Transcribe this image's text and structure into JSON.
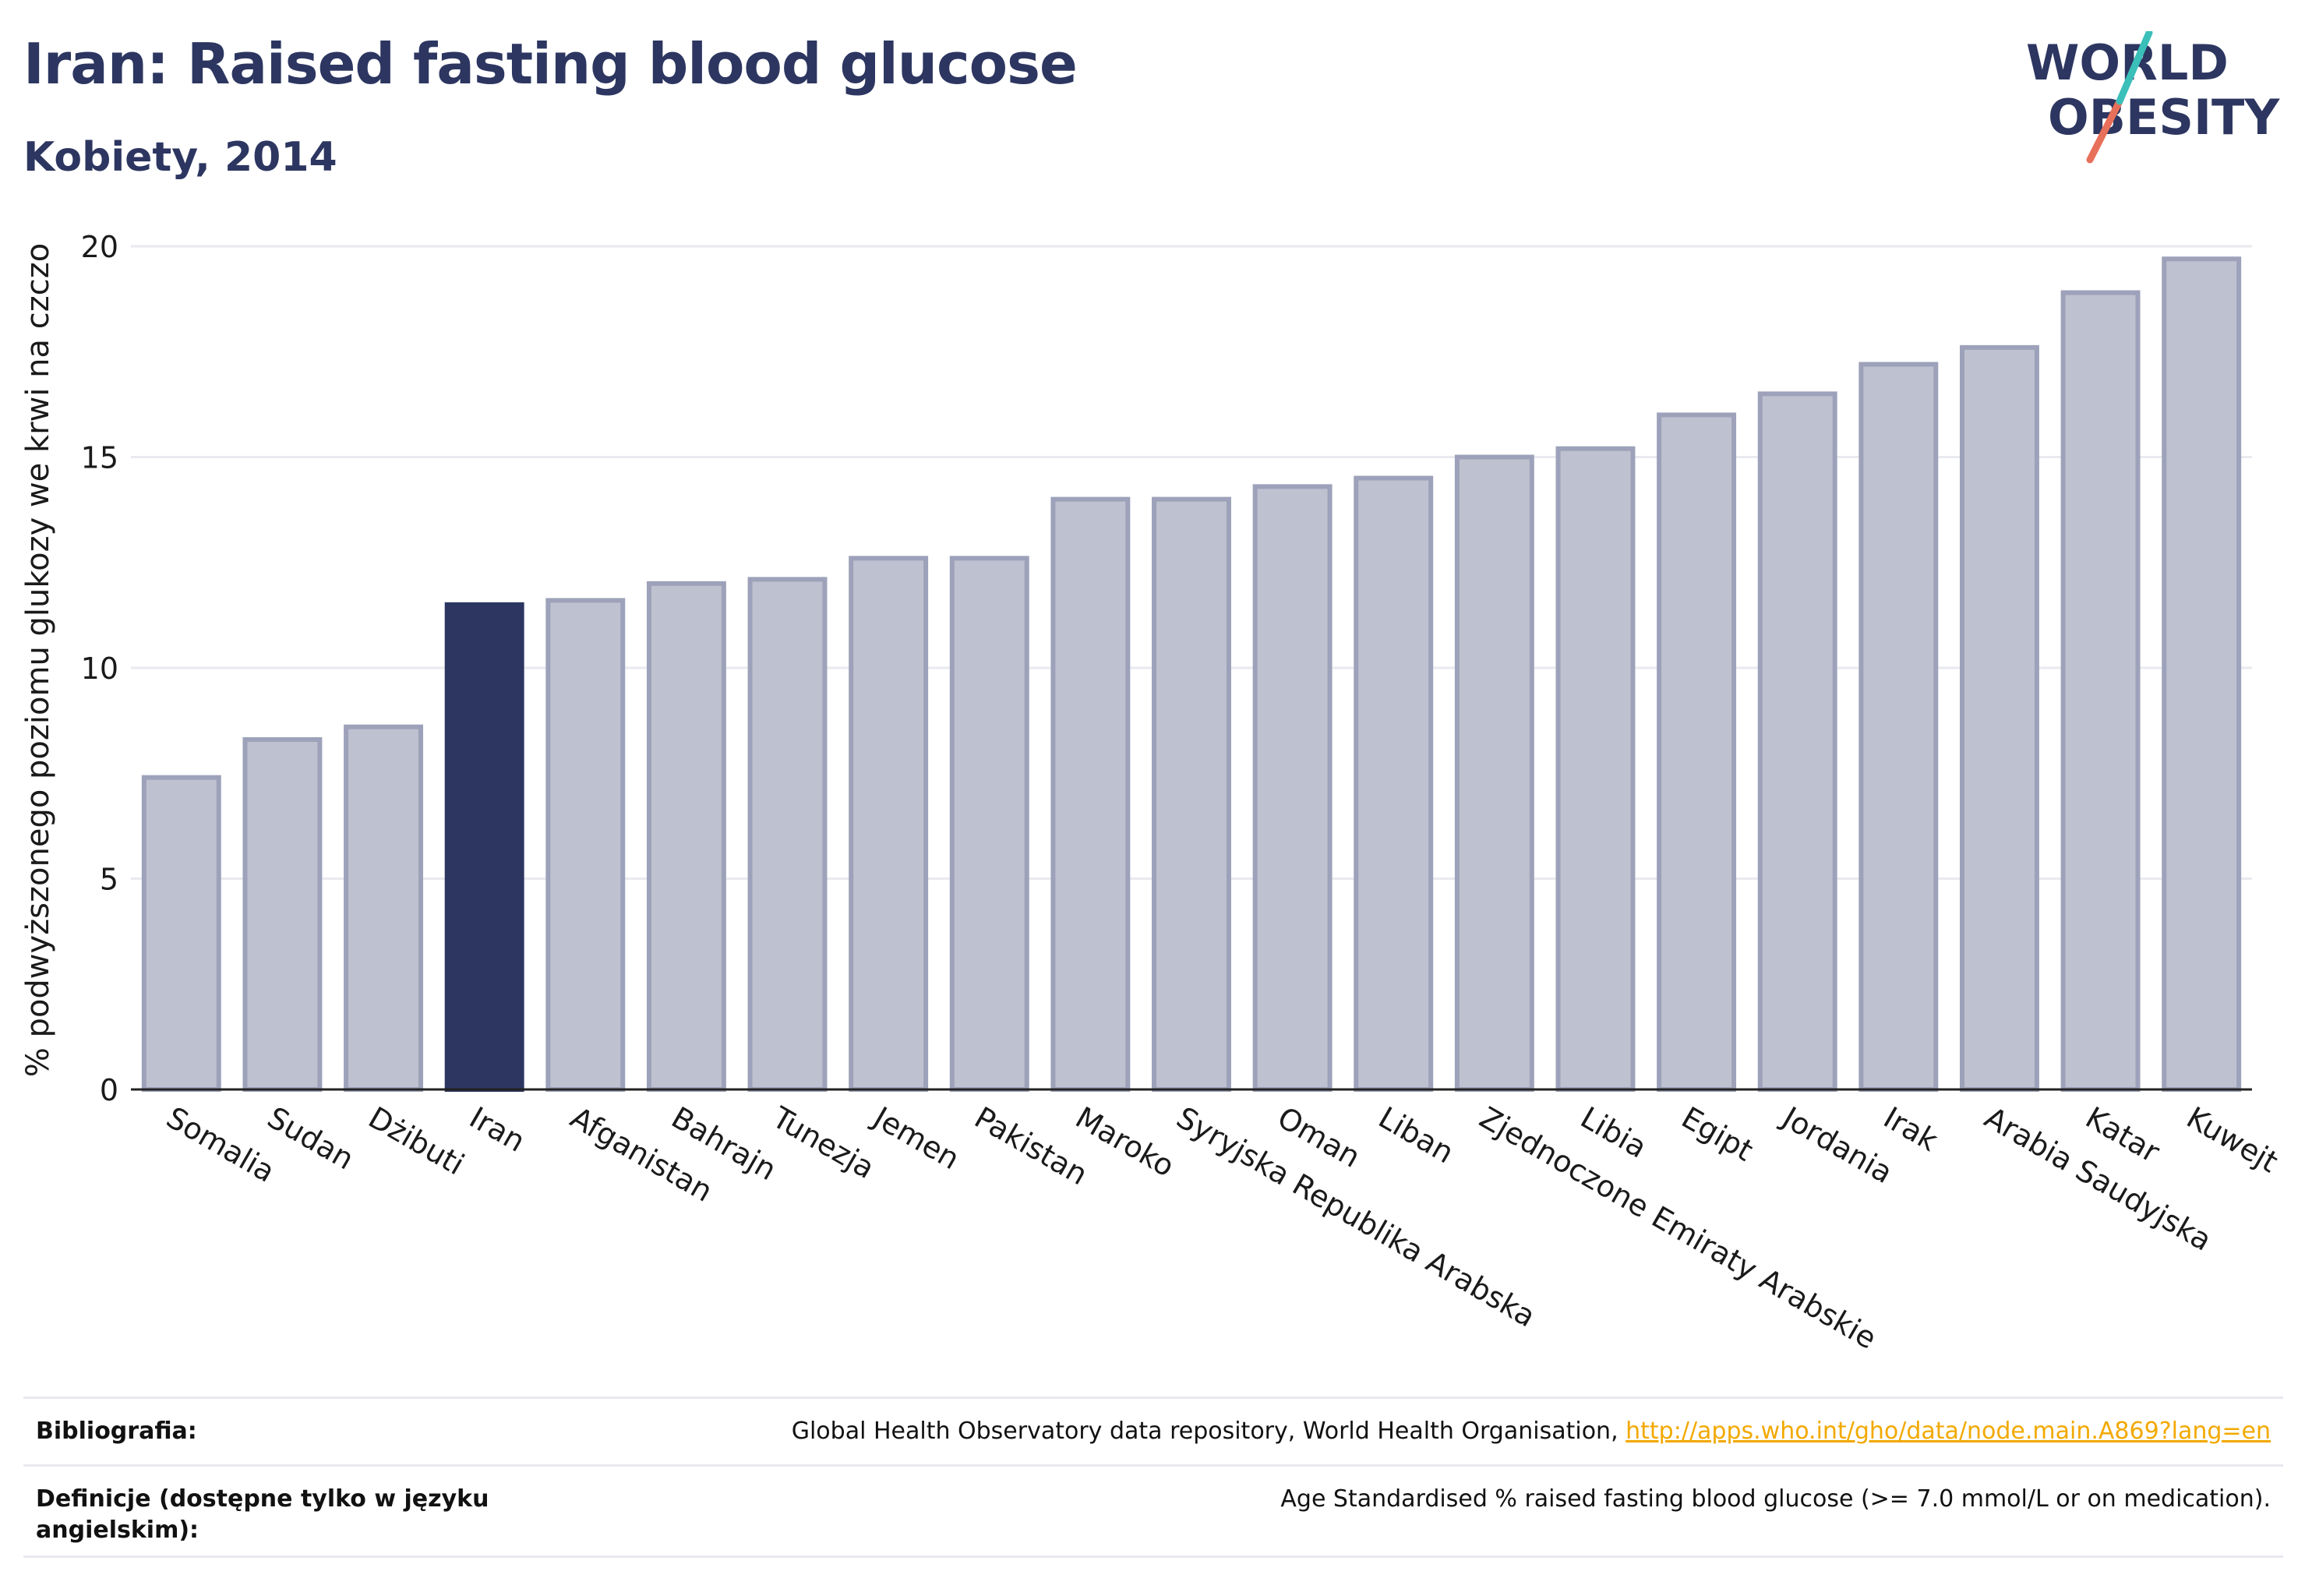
{
  "header": {
    "title": "Iran: Raised fasting blood glucose",
    "subtitle": "Kobiety, 2014"
  },
  "logo": {
    "line1": "WORLD",
    "line2": "OBESITY",
    "accent_teal": "#3bbfb9",
    "accent_red": "#e8705a"
  },
  "colors": {
    "highlight": "#2c3660",
    "bar": "#bec1cf",
    "bar_border": "#9da2ba",
    "grid": "#e9eaef",
    "text": "#2c3660"
  },
  "chart_data": {
    "type": "bar",
    "ylabel": "% podwyższonego poziomu glukozy we krwi na czczo",
    "xlabel": "",
    "ylim": [
      0,
      20
    ],
    "yticks": [
      0,
      5,
      10,
      15,
      20
    ],
    "grid": true,
    "highlight": "Iran",
    "categories": [
      "Somalia",
      "Sudan",
      "Dżibuti",
      "Iran",
      "Afganistan",
      "Bahrajn",
      "Tunezja",
      "Jemen",
      "Pakistan",
      "Maroko",
      "Syryjska Republika Arabska",
      "Oman",
      "Liban",
      "Zjednoczone Emiraty Arabskie",
      "Libia",
      "Egipt",
      "Jordania",
      "Irak",
      "Arabia Saudyjska",
      "Katar",
      "Kuwejt"
    ],
    "values": [
      7.4,
      8.3,
      8.6,
      11.5,
      11.6,
      12.0,
      12.1,
      12.6,
      12.6,
      14.0,
      14.0,
      14.3,
      14.5,
      15.0,
      15.2,
      16.0,
      16.5,
      17.2,
      17.6,
      18.9,
      19.7
    ]
  },
  "footer": {
    "bibliography_label": "Bibliografia:",
    "bibliography_text": "Global Health Observatory data repository, World Health Organisation, ",
    "bibliography_link": "http://apps.who.int/gho/data/node.main.A869?lang=en",
    "definitions_label": "Definicje (dostępne tylko w języku angielskim):",
    "definitions_text": "Age Standardised % raised fasting blood glucose (>= 7.0 mmol/L or on medication)."
  }
}
